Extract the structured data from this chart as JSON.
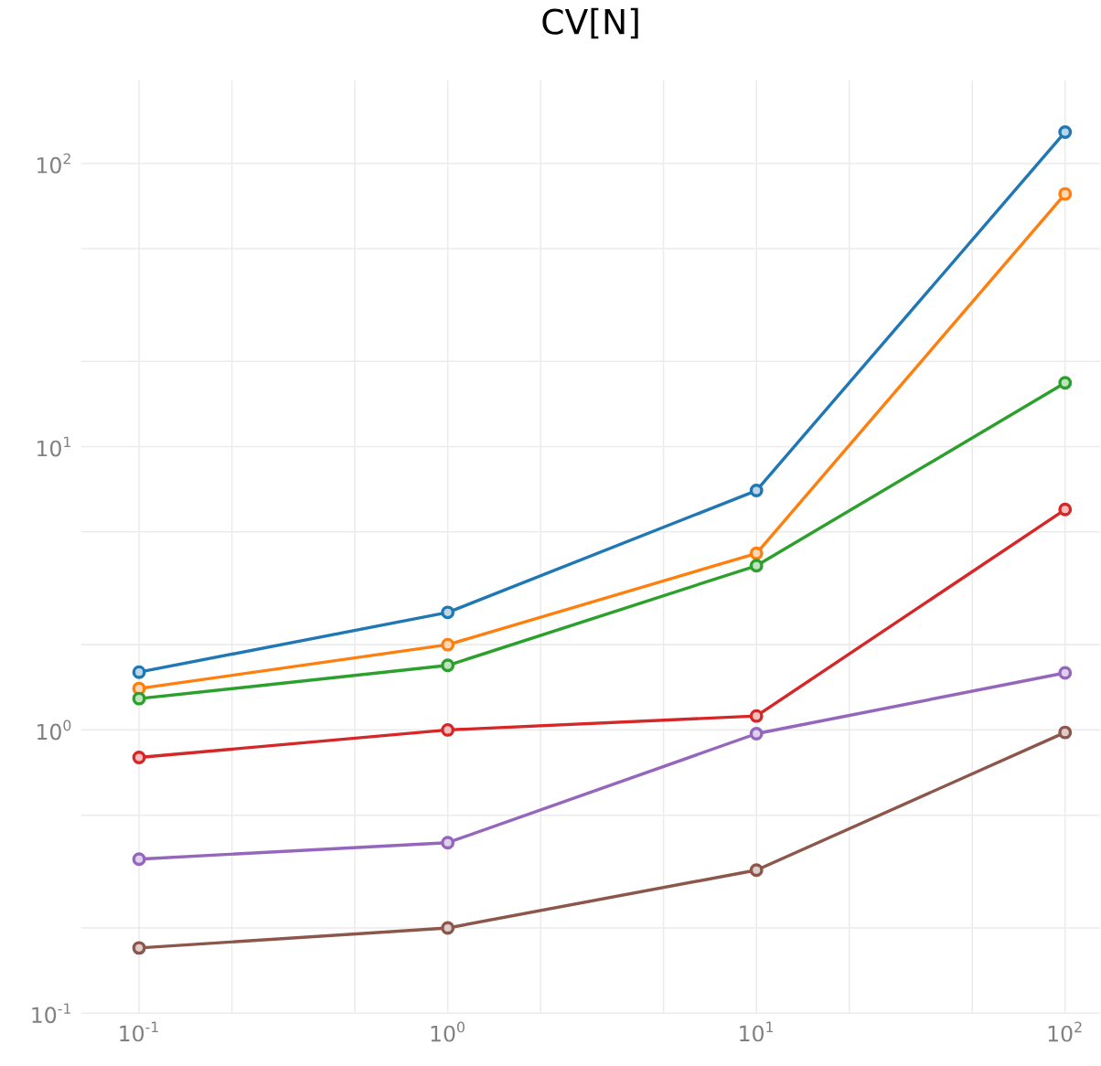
{
  "chart_data": {
    "type": "line",
    "title": "CV[N]",
    "x": [
      0.1,
      1,
      10,
      100
    ],
    "log": "xy",
    "grid": true,
    "marker": "circle",
    "line_style": "solid",
    "xlim": [
      0.065,
      130
    ],
    "ylim": [
      0.1,
      196
    ],
    "xticks": [
      {
        "value": 0.1,
        "label": "10$^{-1}$"
      },
      {
        "value": 0.2,
        "label": null
      },
      {
        "value": 0.5,
        "label": null
      },
      {
        "value": 1,
        "label": "10$^{0}$"
      },
      {
        "value": 2,
        "label": null
      },
      {
        "value": 5,
        "label": null
      },
      {
        "value": 10,
        "label": "10$^{1}$"
      },
      {
        "value": 20,
        "label": null
      },
      {
        "value": 50,
        "label": null
      },
      {
        "value": 100,
        "label": "10$^{2}$"
      }
    ],
    "yticks": [
      {
        "value": 0.1,
        "label": "10$^{-1}$"
      },
      {
        "value": 0.2,
        "label": null
      },
      {
        "value": 0.5,
        "label": null
      },
      {
        "value": 1,
        "label": "10$^{0}$"
      },
      {
        "value": 2,
        "label": null
      },
      {
        "value": 5,
        "label": null
      },
      {
        "value": 10,
        "label": "10$^{1}$"
      },
      {
        "value": 20,
        "label": null
      },
      {
        "value": 50,
        "label": null
      },
      {
        "value": 100,
        "label": "10$^{2}$"
      }
    ],
    "series": [
      {
        "color": "#1f77b4",
        "values": [
          1.6,
          2.6,
          7.0,
          129
        ]
      },
      {
        "color": "#ff7f0e",
        "values": [
          1.4,
          2.0,
          4.2,
          78
        ]
      },
      {
        "color": "#2ca02c",
        "values": [
          1.29,
          1.69,
          3.8,
          16.8
        ]
      },
      {
        "color": "#d62728",
        "values": [
          0.8,
          1.0,
          1.12,
          6.0
        ]
      },
      {
        "color": "#9467bd",
        "values": [
          0.35,
          0.4,
          0.97,
          1.59
        ]
      },
      {
        "color": "#8c564b",
        "values": [
          0.17,
          0.2,
          0.32,
          0.98
        ]
      }
    ]
  }
}
